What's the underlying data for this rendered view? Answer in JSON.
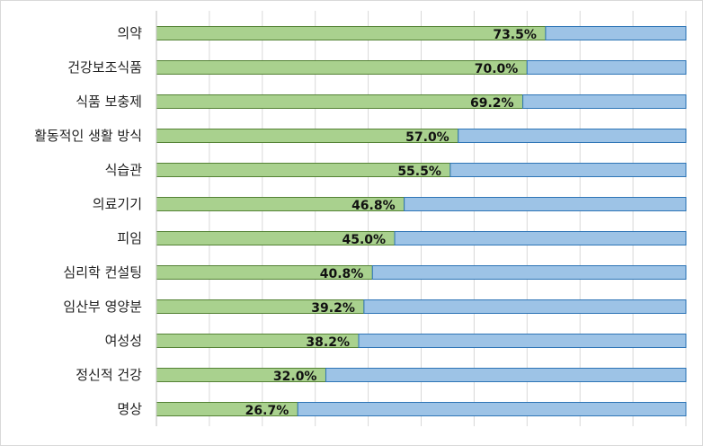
{
  "chart_data": {
    "type": "bar",
    "orientation": "horizontal",
    "stacked": true,
    "categories": [
      "의약",
      "건강보조식품",
      "식품 보충제",
      "활동적인 생활 방식",
      "식습관",
      "의료기기",
      "피임",
      "심리학 컨설팅",
      "임산부 영양분",
      "여성성",
      "정신적 건강",
      "명상"
    ],
    "series": [
      {
        "values": [
          73.5,
          70.0,
          69.2,
          57.0,
          55.5,
          46.8,
          45.0,
          40.8,
          39.2,
          38.2,
          32.0,
          26.7
        ]
      },
      {
        "values": [
          26.5,
          30.0,
          30.8,
          43.0,
          44.5,
          53.2,
          55.0,
          59.2,
          60.8,
          61.8,
          68.0,
          73.3
        ]
      }
    ],
    "data_labels": [
      "73.5%",
      "70.0%",
      "69.2%",
      "57.0%",
      "55.5%",
      "46.8%",
      "45.0%",
      "40.8%",
      "39.2%",
      "38.2%",
      "32.0%",
      "26.7%"
    ],
    "xlim": [
      0,
      100
    ],
    "grid": true,
    "colors": {
      "series1": "#a9d18e",
      "series1_border": "#548235",
      "series2": "#9dc3e6",
      "series2_border": "#2e75b6"
    }
  }
}
